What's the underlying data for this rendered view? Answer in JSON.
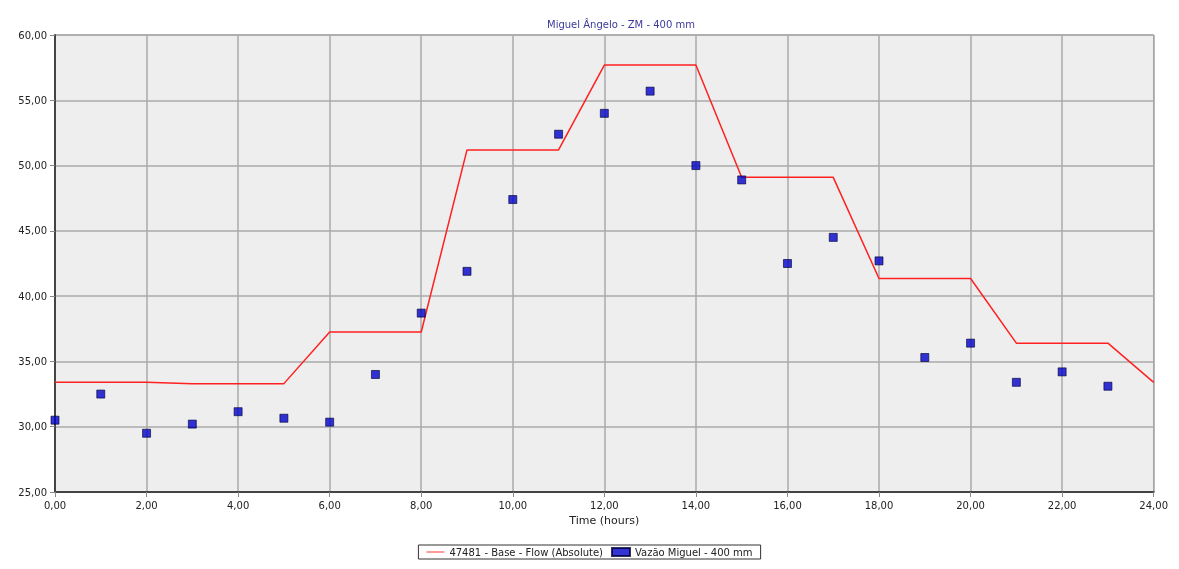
{
  "chart_data": {
    "type": "line",
    "title": "Miguel Ângelo - ZM - 400 mm",
    "xlabel": "Time (hours)",
    "xlim": [
      0,
      24
    ],
    "xticks": [
      {
        "value": 0,
        "label": "0,00"
      },
      {
        "value": 2,
        "label": "2,00"
      },
      {
        "value": 4,
        "label": "4,00"
      },
      {
        "value": 6,
        "label": "6,00"
      },
      {
        "value": 8,
        "label": "8,00"
      },
      {
        "value": 10,
        "label": "10,00"
      },
      {
        "value": 12,
        "label": "12,00"
      },
      {
        "value": 14,
        "label": "14,00"
      },
      {
        "value": 16,
        "label": "16,00"
      },
      {
        "value": 18,
        "label": "18,00"
      },
      {
        "value": 20,
        "label": "20,00"
      },
      {
        "value": 22,
        "label": "22,00"
      },
      {
        "value": 24,
        "label": "24,00"
      }
    ],
    "ylim": [
      25,
      60
    ],
    "yticks": [
      {
        "value": 25,
        "label": "25,00"
      },
      {
        "value": 30,
        "label": "30,00"
      },
      {
        "value": 35,
        "label": "35,00"
      },
      {
        "value": 40,
        "label": "40,00"
      },
      {
        "value": 45,
        "label": "45,00"
      },
      {
        "value": 50,
        "label": "50,00"
      },
      {
        "value": 55,
        "label": "55,00"
      },
      {
        "value": 60,
        "label": "60,00"
      }
    ],
    "grid": true,
    "legend": "bottom",
    "series": [
      {
        "name": "47481 - Base - Flow (Absolute)",
        "color": "#ff2020",
        "marker": "none",
        "x": [
          0,
          2,
          3,
          5,
          6,
          8,
          9,
          11,
          12,
          14,
          15,
          17,
          18,
          20,
          21,
          23,
          24
        ],
        "values": [
          33.4,
          33.4,
          33.3,
          33.3,
          37.25,
          37.25,
          51.2,
          51.2,
          57.7,
          57.7,
          49.1,
          49.1,
          41.35,
          41.35,
          36.4,
          36.4,
          33.4
        ]
      },
      {
        "name": "Vazão Miguel - 400 mm",
        "type": "scatter",
        "color": "#0000cc",
        "marker": "square",
        "x": [
          0,
          1,
          2,
          3,
          4,
          5,
          6,
          7,
          8,
          9,
          10,
          11,
          12,
          13,
          14,
          15,
          16,
          17,
          18,
          19,
          20,
          21,
          22,
          23
        ],
        "values": [
          30.5,
          32.5,
          29.5,
          30.2,
          31.15,
          30.65,
          30.35,
          34.0,
          38.7,
          41.9,
          47.4,
          52.4,
          54.0,
          55.7,
          50.0,
          48.9,
          42.5,
          44.5,
          42.7,
          35.3,
          36.4,
          33.4,
          34.2,
          33.1
        ]
      }
    ]
  }
}
